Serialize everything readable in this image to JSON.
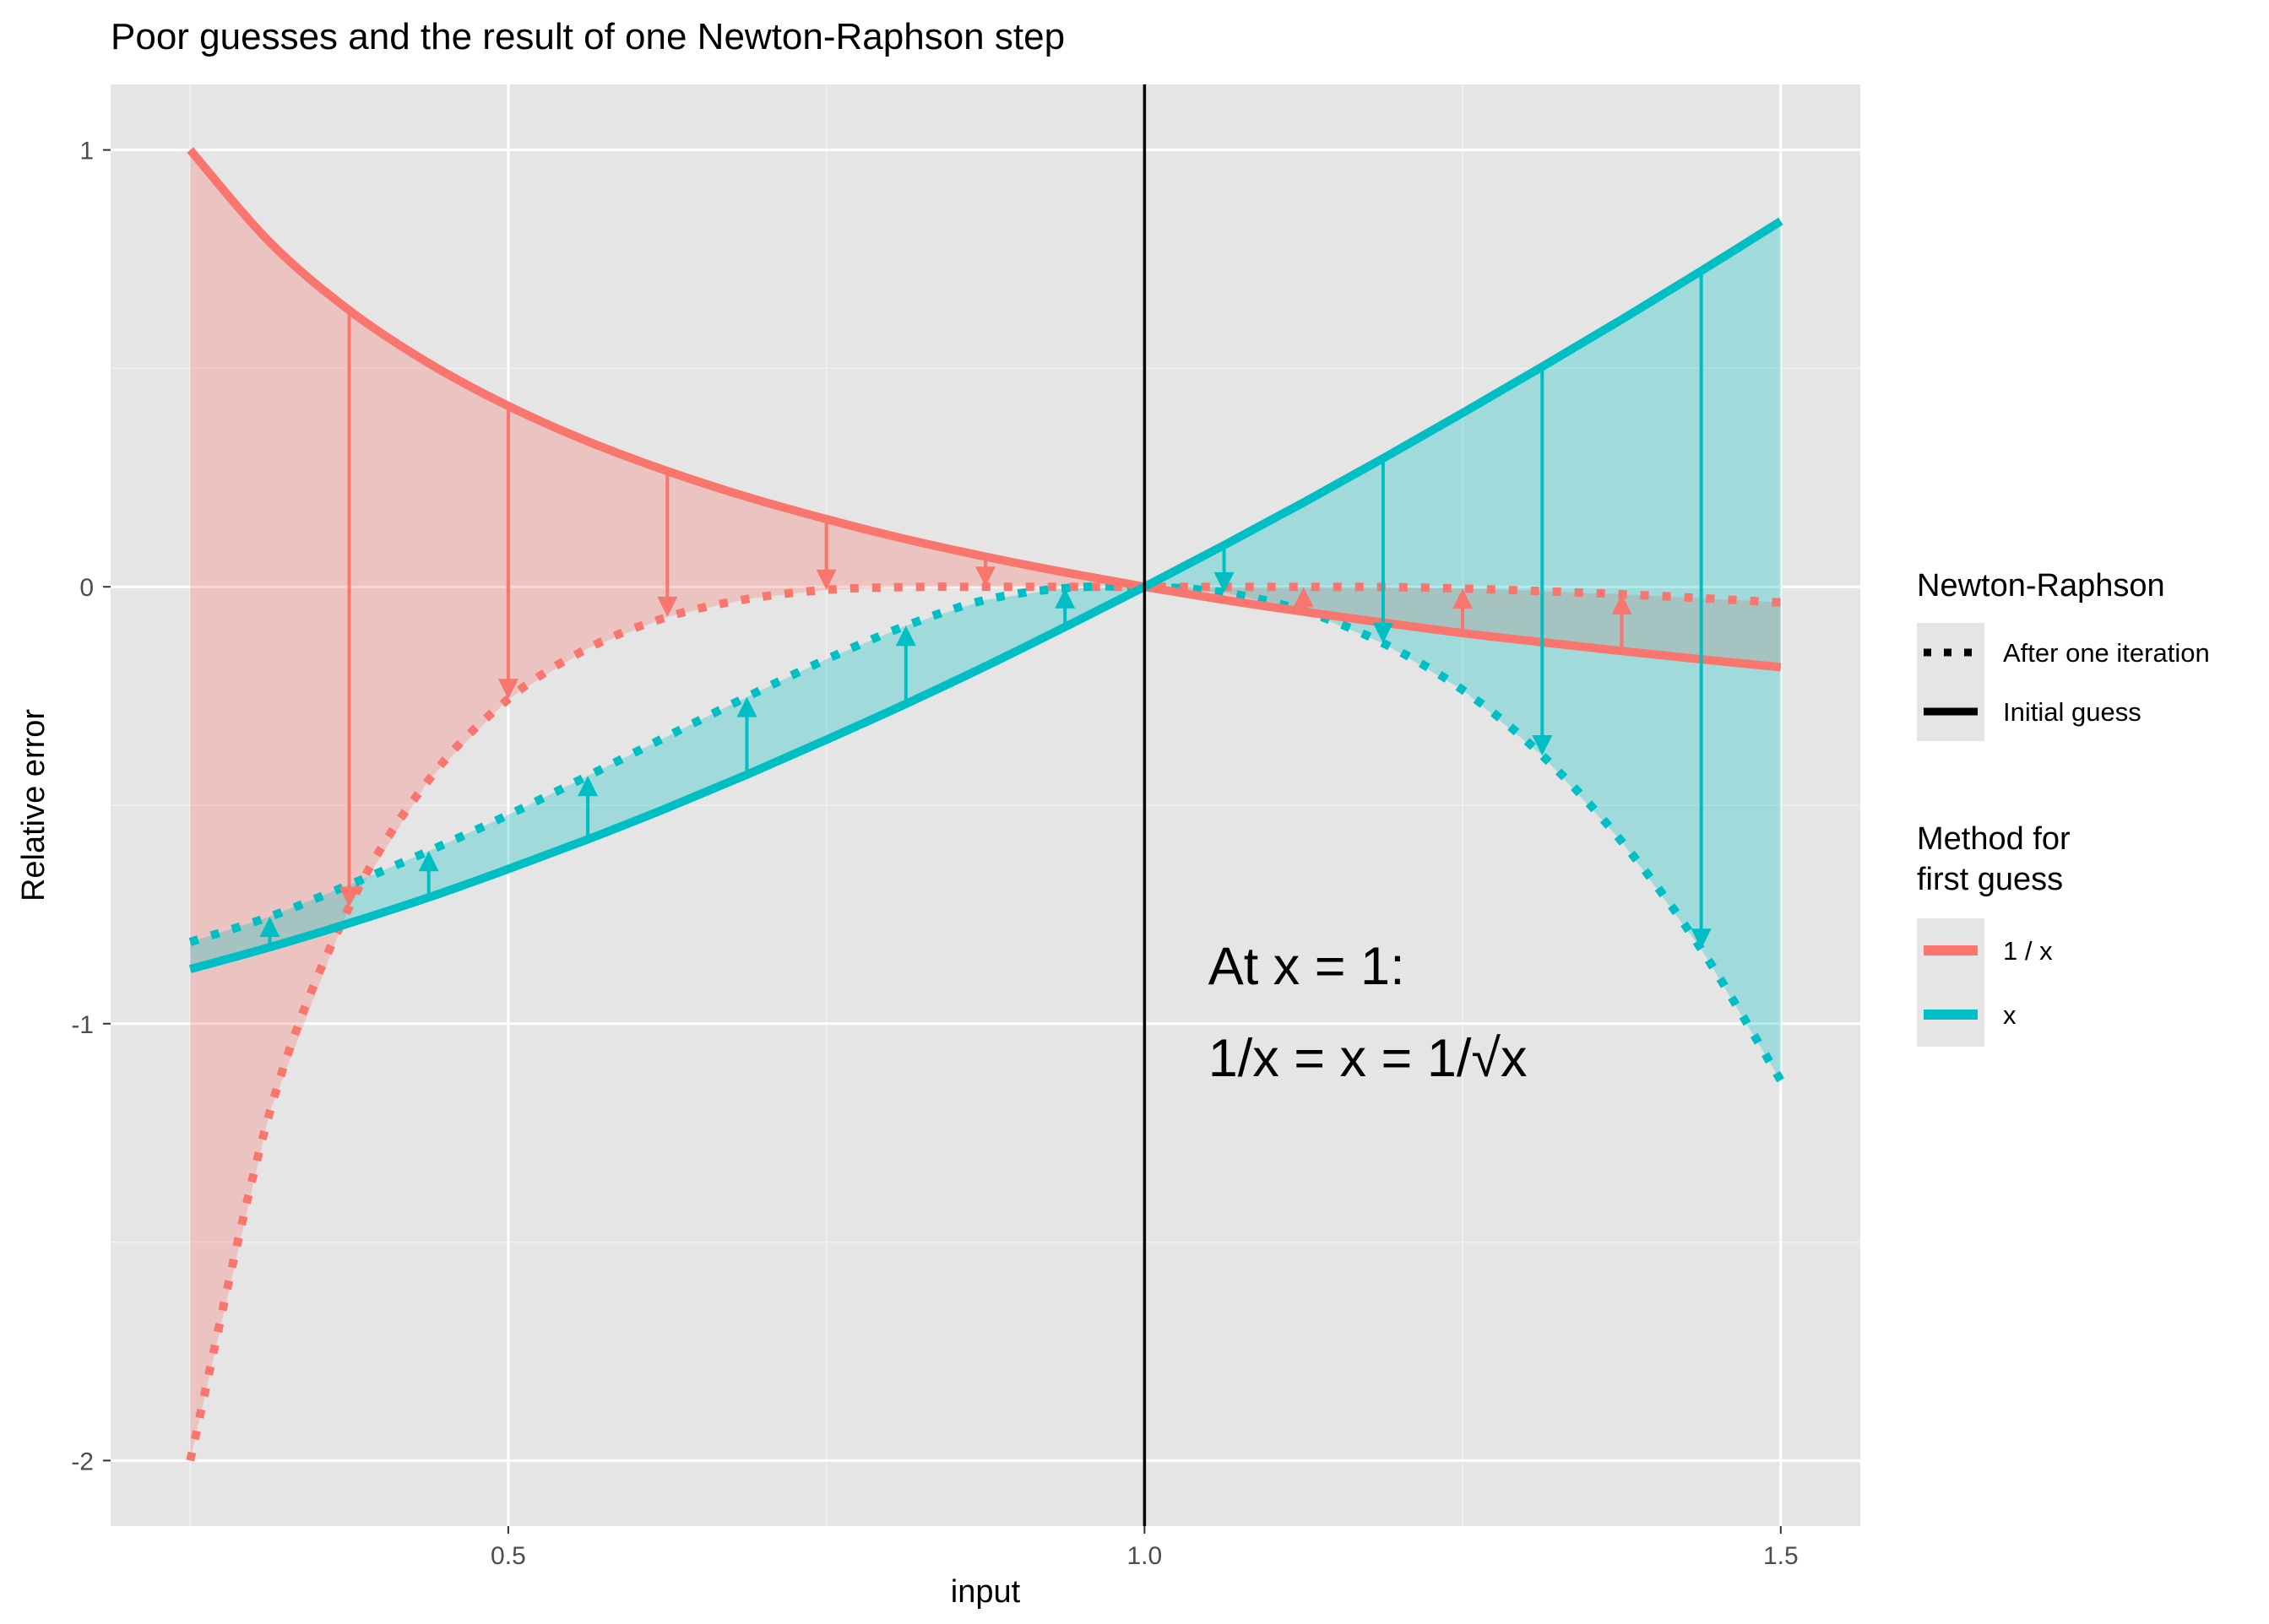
{
  "chart_data": {
    "type": "line",
    "title": "Poor guesses and the result of one Newton-Raphson step",
    "xlabel": "input",
    "ylabel": "Relative error",
    "xlim": [
      0.1875,
      1.5625
    ],
    "ylim": [
      -2.15,
      1.15
    ],
    "x_ticks": [
      {
        "value": 0.5,
        "label": "0.5"
      },
      {
        "value": 1.0,
        "label": "1.0"
      },
      {
        "value": 1.5,
        "label": "1.5"
      }
    ],
    "y_ticks": [
      {
        "value": 1,
        "label": "1"
      },
      {
        "value": 0,
        "label": "0"
      },
      {
        "value": -1,
        "label": "-1"
      },
      {
        "value": -2,
        "label": "-2"
      }
    ],
    "x_minor_gridlines": [
      0.25,
      0.75,
      1.25
    ],
    "y_minor_gridlines": [
      0.5,
      -0.5,
      -1.5
    ],
    "vertical_line_x": 1.0,
    "grid": true,
    "background": "#e5e5e5",
    "annotation": {
      "line1": "At x = 1:",
      "line2": "1/x = x = 1/√x",
      "x": 1.05,
      "y_line1": -0.91,
      "y_line2": -1.12
    },
    "series": [
      {
        "method": "1 / x",
        "linetype": "Initial guess",
        "color": "#f8766d",
        "x": [
          0.25,
          0.3125,
          0.375,
          0.4375,
          0.5,
          0.5625,
          0.625,
          0.6875,
          0.75,
          0.8125,
          0.875,
          0.9375,
          1.0,
          1.0625,
          1.125,
          1.1875,
          1.25,
          1.3125,
          1.375,
          1.4375,
          1.5
        ],
        "y": [
          1.0,
          0.789,
          0.633,
          0.512,
          0.414,
          0.333,
          0.265,
          0.206,
          0.155,
          0.109,
          0.069,
          0.033,
          0.0,
          -0.03,
          -0.057,
          -0.082,
          -0.106,
          -0.127,
          -0.147,
          -0.166,
          -0.184
        ]
      },
      {
        "method": "1 / x",
        "linetype": "After one iteration",
        "color": "#f8766d",
        "x": [
          0.25,
          0.3125,
          0.375,
          0.4375,
          0.5,
          0.5625,
          0.625,
          0.6875,
          0.75,
          0.8125,
          0.875,
          0.9375,
          1.0,
          1.0625,
          1.125,
          1.1875,
          1.25,
          1.3125,
          1.375,
          1.4375,
          1.5
        ],
        "y": [
          -2.0,
          -1.203,
          -0.733,
          -0.442,
          -0.257,
          -0.141,
          -0.069,
          -0.028,
          -0.007,
          -0.0005,
          0.0,
          0.0,
          0.0,
          0.0,
          0.0,
          -0.0005,
          -0.004,
          -0.01,
          -0.017,
          -0.026,
          -0.036
        ]
      },
      {
        "method": "x",
        "linetype": "Initial guess",
        "color": "#00bfc4",
        "x": [
          0.25,
          0.3125,
          0.375,
          0.4375,
          0.5,
          0.5625,
          0.625,
          0.6875,
          0.75,
          0.8125,
          0.875,
          0.9375,
          1.0,
          1.0625,
          1.125,
          1.1875,
          1.25,
          1.3125,
          1.375,
          1.4375,
          1.5
        ],
        "y": [
          -0.875,
          -0.825,
          -0.77,
          -0.711,
          -0.646,
          -0.578,
          -0.506,
          -0.43,
          -0.35,
          -0.268,
          -0.182,
          -0.092,
          0.0,
          0.095,
          0.193,
          0.294,
          0.398,
          0.504,
          0.612,
          0.723,
          0.837
        ]
      },
      {
        "method": "x",
        "linetype": "After one iteration",
        "color": "#00bfc4",
        "x": [
          0.25,
          0.3125,
          0.375,
          0.4375,
          0.5,
          0.5625,
          0.625,
          0.6875,
          0.75,
          0.8125,
          0.875,
          0.9375,
          1.0,
          1.0625,
          1.125,
          1.1875,
          1.25,
          1.3125,
          1.375,
          1.4375,
          1.5
        ],
        "y": [
          -0.813,
          -0.755,
          -0.682,
          -0.605,
          -0.522,
          -0.433,
          -0.342,
          -0.252,
          -0.166,
          -0.089,
          -0.03,
          -0.003,
          0.0,
          -0.013,
          -0.055,
          -0.129,
          -0.236,
          -0.386,
          -0.583,
          -0.829,
          -1.13
        ]
      }
    ],
    "arrows": [
      {
        "method": "1 / x",
        "x": 0.375,
        "from": 0.633,
        "to": -0.733
      },
      {
        "method": "1 / x",
        "x": 0.5,
        "from": 0.414,
        "to": -0.257
      },
      {
        "method": "1 / x",
        "x": 0.625,
        "from": 0.265,
        "to": -0.069
      },
      {
        "method": "1 / x",
        "x": 0.75,
        "from": 0.155,
        "to": -0.007
      },
      {
        "method": "1 / x",
        "x": 0.875,
        "from": 0.069,
        "to": 0.0
      },
      {
        "method": "1 / x",
        "x": 1.125,
        "from": -0.057,
        "to": 0.0
      },
      {
        "method": "1 / x",
        "x": 1.25,
        "from": -0.106,
        "to": -0.004
      },
      {
        "method": "1 / x",
        "x": 1.375,
        "from": -0.147,
        "to": -0.017
      },
      {
        "method": "x",
        "x": 0.3125,
        "from": -0.825,
        "to": -0.755
      },
      {
        "method": "x",
        "x": 0.4375,
        "from": -0.711,
        "to": -0.605
      },
      {
        "method": "x",
        "x": 0.5625,
        "from": -0.578,
        "to": -0.433
      },
      {
        "method": "x",
        "x": 0.6875,
        "from": -0.43,
        "to": -0.252
      },
      {
        "method": "x",
        "x": 0.8125,
        "from": -0.268,
        "to": -0.089
      },
      {
        "method": "x",
        "x": 0.9375,
        "from": -0.092,
        "to": -0.003
      },
      {
        "method": "x",
        "x": 1.0625,
        "from": 0.095,
        "to": -0.013
      },
      {
        "method": "x",
        "x": 1.1875,
        "from": 0.294,
        "to": -0.129
      },
      {
        "method": "x",
        "x": 1.3125,
        "from": 0.504,
        "to": -0.386
      },
      {
        "method": "x",
        "x": 1.4375,
        "from": 0.723,
        "to": -0.829
      }
    ],
    "legend": {
      "placement": "right",
      "linetype": {
        "title": "Newton-Raphson",
        "items": [
          {
            "label": "After one iteration",
            "style": "dotted"
          },
          {
            "label": "Initial guess",
            "style": "solid"
          }
        ]
      },
      "color": {
        "title_line1": "Method for",
        "title_line2": "first guess",
        "items": [
          {
            "label": "1 / x",
            "color": "#f8766d"
          },
          {
            "label": "x",
            "color": "#00bfc4"
          }
        ]
      }
    }
  }
}
